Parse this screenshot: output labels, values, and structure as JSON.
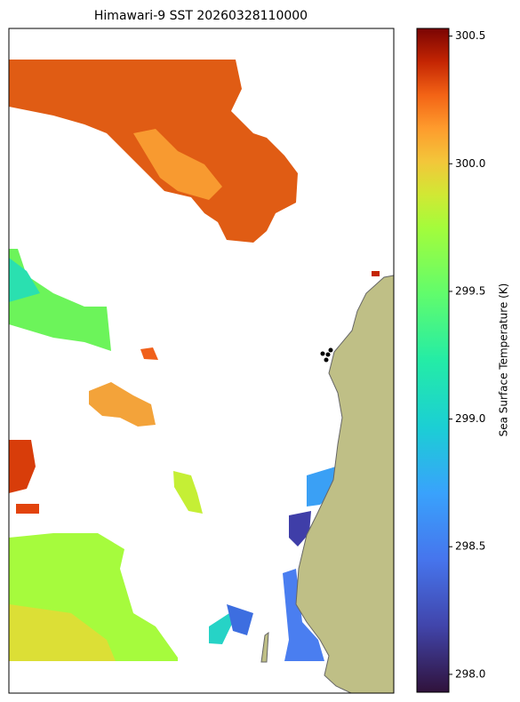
{
  "map": {
    "title": "Himawari-9 SST 20260328110000",
    "colorbar": {
      "label": "Sea Surface Temperature (K)",
      "lim": [
        297.93,
        300.53
      ],
      "ticks": [
        {
          "value": 298,
          "label": "298.0"
        },
        {
          "value": 298.5,
          "label": "298.5"
        },
        {
          "value": 299,
          "label": "299.0"
        },
        {
          "value": 299.5,
          "label": "299.5"
        },
        {
          "value": 300,
          "label": "300.0"
        },
        {
          "value": 300.5,
          "label": "300.5"
        }
      ]
    }
  }
}
